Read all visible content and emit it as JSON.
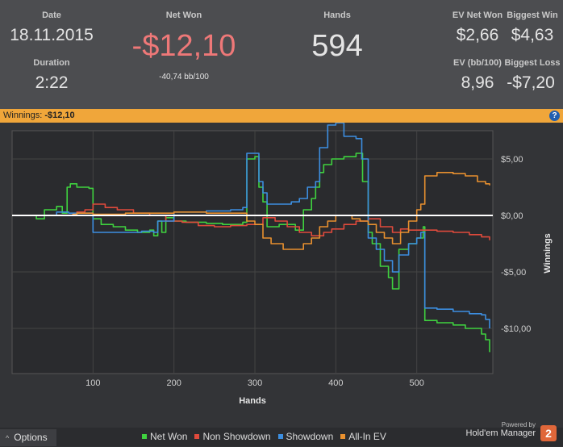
{
  "stats": {
    "date_label": "Date",
    "date_value": "18.11.2015",
    "duration_label": "Duration",
    "duration_value": "2:22",
    "net_won_label": "Net Won",
    "net_won_value": "-$12,10",
    "net_won_bb": "-40,74 bb/100",
    "hands_label": "Hands",
    "hands_value": "594",
    "ev_net_won_label": "EV Net Won",
    "ev_net_won_value": "$2,66",
    "biggest_win_label": "Biggest Win",
    "biggest_win_value": "$4,63",
    "ev_bb_label": "EV (bb/100)",
    "ev_bb_value": "8,96",
    "biggest_loss_label": "Biggest Loss",
    "biggest_loss_value": "-$7,20"
  },
  "winnings_bar": {
    "label": "Winnings:",
    "value": "-$12,10",
    "help_icon": "help-icon"
  },
  "footer": {
    "options_label": "Options",
    "powered_by": "Powered by",
    "brand": "Hold'em Manager",
    "badge": "2"
  },
  "colors": {
    "net_won": "#3fd23f",
    "non_showdown": "#e04a3c",
    "showdown": "#3c8ee0",
    "all_in_ev": "#e8902f",
    "net_won_value": "#ee7878",
    "bar": "#f0a63a"
  },
  "chart_data": {
    "type": "line",
    "xlabel": "Hands",
    "ylabel": "Winnings",
    "xlim": [
      0,
      594
    ],
    "ylim": [
      -14,
      7.5
    ],
    "x_ticks": [
      100,
      200,
      300,
      400,
      500
    ],
    "y_ticks": [
      5,
      0,
      -5,
      -10
    ],
    "y_tick_labels": [
      "$5,00",
      "$0,00",
      "-$5,00",
      "-$10,00"
    ],
    "grid": true,
    "legend_position": "bottom",
    "series": [
      {
        "name": "Net Won",
        "color": "#3fd23f",
        "points": [
          [
            0,
            0
          ],
          [
            20,
            0
          ],
          [
            30,
            -0.3
          ],
          [
            40,
            0.5
          ],
          [
            55,
            0.8
          ],
          [
            62,
            0.2
          ],
          [
            68,
            2.5
          ],
          [
            72,
            2.8
          ],
          [
            80,
            2.5
          ],
          [
            95,
            2.4
          ],
          [
            100,
            -0.3
          ],
          [
            110,
            -0.8
          ],
          [
            125,
            -1.0
          ],
          [
            140,
            -1.3
          ],
          [
            155,
            -1.5
          ],
          [
            170,
            -1.3
          ],
          [
            175,
            -1.8
          ],
          [
            180,
            -0.5
          ],
          [
            185,
            -1.5
          ],
          [
            190,
            -0.2
          ],
          [
            200,
            -0.5
          ],
          [
            215,
            -0.6
          ],
          [
            240,
            -0.7
          ],
          [
            260,
            -0.8
          ],
          [
            285,
            -0.6
          ],
          [
            290,
            5.0
          ],
          [
            300,
            5.2
          ],
          [
            305,
            2.5
          ],
          [
            310,
            1.2
          ],
          [
            315,
            -1.0
          ],
          [
            330,
            -0.8
          ],
          [
            350,
            -1.3
          ],
          [
            360,
            0.5
          ],
          [
            370,
            1.5
          ],
          [
            375,
            2.5
          ],
          [
            380,
            3.8
          ],
          [
            385,
            4.5
          ],
          [
            395,
            5.0
          ],
          [
            410,
            5.2
          ],
          [
            425,
            5.5
          ],
          [
            433,
            3.0
          ],
          [
            440,
            -1.5
          ],
          [
            445,
            -2.5
          ],
          [
            455,
            -4.5
          ],
          [
            465,
            -5.5
          ],
          [
            470,
            -6.5
          ],
          [
            478,
            -3.0
          ],
          [
            490,
            -2.5
          ],
          [
            500,
            -2.0
          ],
          [
            508,
            -1.0
          ],
          [
            510,
            -9.3
          ],
          [
            525,
            -9.5
          ],
          [
            545,
            -9.7
          ],
          [
            560,
            -10.0
          ],
          [
            580,
            -10.5
          ],
          [
            585,
            -11.0
          ],
          [
            590,
            -12.1
          ]
        ]
      },
      {
        "name": "Non Showdown",
        "color": "#e04a3c",
        "points": [
          [
            0,
            0
          ],
          [
            40,
            0
          ],
          [
            80,
            0.3
          ],
          [
            90,
            0.5
          ],
          [
            100,
            1.0
          ],
          [
            115,
            0.7
          ],
          [
            130,
            0.5
          ],
          [
            150,
            0.2
          ],
          [
            170,
            0.0
          ],
          [
            190,
            -0.5
          ],
          [
            210,
            -0.6
          ],
          [
            230,
            -0.9
          ],
          [
            250,
            -1.0
          ],
          [
            270,
            -0.9
          ],
          [
            290,
            -0.8
          ],
          [
            310,
            -0.2
          ],
          [
            325,
            -0.5
          ],
          [
            340,
            -1.0
          ],
          [
            355,
            -1.5
          ],
          [
            370,
            -1.8
          ],
          [
            385,
            -1.5
          ],
          [
            395,
            -1.2
          ],
          [
            410,
            -0.8
          ],
          [
            425,
            -0.5
          ],
          [
            440,
            -0.3
          ],
          [
            455,
            -1.0
          ],
          [
            470,
            -1.5
          ],
          [
            480,
            -1.2
          ],
          [
            490,
            -1.3
          ],
          [
            500,
            -1.3
          ],
          [
            510,
            -1.3
          ],
          [
            525,
            -1.4
          ],
          [
            545,
            -1.5
          ],
          [
            565,
            -1.7
          ],
          [
            580,
            -1.9
          ],
          [
            590,
            -2.2
          ]
        ]
      },
      {
        "name": "Showdown",
        "color": "#3c8ee0",
        "points": [
          [
            0,
            0
          ],
          [
            40,
            0
          ],
          [
            55,
            0.3
          ],
          [
            65,
            0.3
          ],
          [
            70,
            0.2
          ],
          [
            95,
            0.2
          ],
          [
            100,
            -1.5
          ],
          [
            120,
            -1.5
          ],
          [
            140,
            -1.5
          ],
          [
            160,
            -1.4
          ],
          [
            175,
            -1.5
          ],
          [
            180,
            -0.5
          ],
          [
            200,
            0.3
          ],
          [
            240,
            0.4
          ],
          [
            270,
            0.5
          ],
          [
            285,
            0.7
          ],
          [
            290,
            5.5
          ],
          [
            300,
            5.5
          ],
          [
            305,
            3.0
          ],
          [
            310,
            2.0
          ],
          [
            315,
            1.0
          ],
          [
            335,
            1.0
          ],
          [
            345,
            1.2
          ],
          [
            355,
            1.5
          ],
          [
            365,
            2.5
          ],
          [
            375,
            3.0
          ],
          [
            380,
            6.0
          ],
          [
            390,
            8.0
          ],
          [
            400,
            8.2
          ],
          [
            410,
            7.0
          ],
          [
            425,
            6.8
          ],
          [
            432,
            5.0
          ],
          [
            440,
            -2.0
          ],
          [
            450,
            -3.0
          ],
          [
            460,
            -4.0
          ],
          [
            470,
            -5.0
          ],
          [
            478,
            -3.5
          ],
          [
            490,
            -2.5
          ],
          [
            500,
            -2.0
          ],
          [
            505,
            -1.5
          ],
          [
            510,
            -8.2
          ],
          [
            525,
            -8.3
          ],
          [
            545,
            -8.5
          ],
          [
            565,
            -8.7
          ],
          [
            580,
            -8.8
          ],
          [
            585,
            -9.2
          ],
          [
            590,
            -10.0
          ]
        ]
      },
      {
        "name": "All-In EV",
        "color": "#e8902f",
        "points": [
          [
            0,
            0
          ],
          [
            50,
            0
          ],
          [
            75,
            0.1
          ],
          [
            80,
            0.2
          ],
          [
            100,
            0.1
          ],
          [
            140,
            0.2
          ],
          [
            180,
            0.2
          ],
          [
            200,
            0.3
          ],
          [
            240,
            0.2
          ],
          [
            280,
            0.2
          ],
          [
            290,
            -0.5
          ],
          [
            300,
            -0.8
          ],
          [
            310,
            -2.0
          ],
          [
            320,
            -2.5
          ],
          [
            335,
            -3.0
          ],
          [
            350,
            -3.0
          ],
          [
            360,
            -2.5
          ],
          [
            370,
            -2.0
          ],
          [
            380,
            -1.0
          ],
          [
            390,
            -0.5
          ],
          [
            400,
            0.0
          ],
          [
            410,
            0.0
          ],
          [
            420,
            -0.3
          ],
          [
            430,
            -0.5
          ],
          [
            440,
            -0.8
          ],
          [
            450,
            -1.5
          ],
          [
            460,
            -2.0
          ],
          [
            470,
            -2.5
          ],
          [
            480,
            -1.5
          ],
          [
            490,
            -0.5
          ],
          [
            500,
            0.5
          ],
          [
            505,
            1.0
          ],
          [
            510,
            3.5
          ],
          [
            525,
            3.8
          ],
          [
            545,
            3.7
          ],
          [
            560,
            3.5
          ],
          [
            575,
            3.0
          ],
          [
            585,
            2.8
          ],
          [
            590,
            2.66
          ]
        ]
      }
    ]
  }
}
